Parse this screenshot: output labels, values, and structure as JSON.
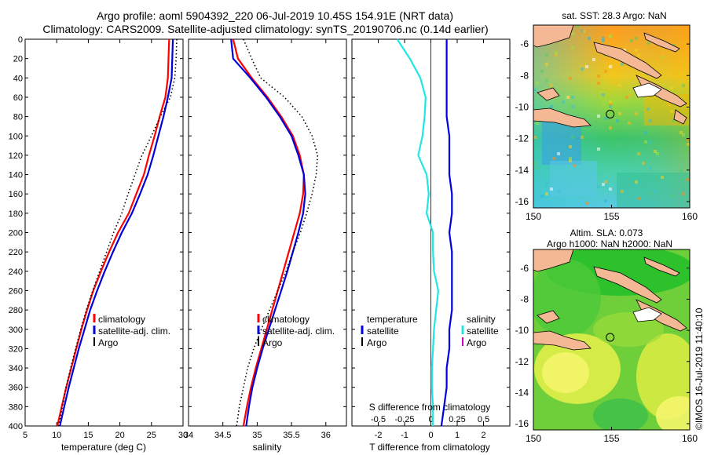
{
  "header": {
    "line1": "Argo profile: aoml 5904392_220 06-Jul-2019 10.45S 154.91E (NRT data)",
    "line2": "Climatology: CARS2009. Satellite-adjusted climatology: synTS_20190706.nc (0.14d earlier)"
  },
  "credit": "©IMOS 16-Jul-2019 11:40:10",
  "colors": {
    "climatology": "#ff0000",
    "satellite": "#0000dd",
    "argo": "#000000",
    "s_satellite": "#22e6e6",
    "s_argo": "#cc00cc",
    "land": "#f4b894"
  },
  "depth_ticks": [
    "0",
    "20",
    "40",
    "60",
    "80",
    "100",
    "120",
    "140",
    "160",
    "180",
    "200",
    "220",
    "240",
    "260",
    "280",
    "300",
    "320",
    "340",
    "360",
    "380",
    "400"
  ],
  "chart_data": [
    {
      "type": "line",
      "id": "temperature",
      "xlabel": "temperature (deg C)",
      "ylabel": "depth",
      "xlim": [
        5,
        30
      ],
      "ylim": [
        0,
        400
      ],
      "xticks": [
        "5",
        "10",
        "15",
        "20",
        "25",
        "30"
      ],
      "depth": [
        0,
        20,
        40,
        60,
        80,
        100,
        120,
        140,
        160,
        180,
        200,
        220,
        240,
        260,
        280,
        300,
        320,
        340,
        360,
        380,
        400
      ],
      "series": [
        {
          "name": "climatology",
          "color": "#ff0000",
          "style": "solid",
          "values": [
            27.8,
            27.7,
            27.6,
            27.2,
            26.3,
            25.5,
            24.6,
            23.8,
            22.6,
            21.4,
            19.7,
            18.3,
            17.0,
            15.8,
            14.8,
            13.9,
            13.1,
            12.3,
            11.5,
            10.8,
            10.1
          ]
        },
        {
          "name": "satellite-adj. clim.",
          "color": "#0000dd",
          "style": "solid",
          "values": [
            28.4,
            28.3,
            28.2,
            27.6,
            26.9,
            26.1,
            25.3,
            24.4,
            23.2,
            21.9,
            20.3,
            18.9,
            17.6,
            16.4,
            15.3,
            14.4,
            13.5,
            12.7,
            11.9,
            11.2,
            10.5
          ]
        },
        {
          "name": "Argo",
          "color": "#000000",
          "style": "dotted",
          "values": [
            29.0,
            28.9,
            28.7,
            28.0,
            26.4,
            25.0,
            23.5,
            22.4,
            21.3,
            20.3,
            19.0,
            17.9,
            16.8,
            15.7,
            14.7,
            13.8,
            13.0,
            12.2,
            11.5,
            10.9,
            10.3
          ]
        }
      ],
      "legend": [
        "climatology",
        "satellite-adj. clim.",
        "Argo"
      ]
    },
    {
      "type": "line",
      "id": "salinity",
      "xlabel": "salinity",
      "ylabel": "depth",
      "xlim": [
        34,
        36.3
      ],
      "ylim": [
        0,
        400
      ],
      "xticks": [
        "34",
        "34.5",
        "35",
        "35.5",
        "36"
      ],
      "depth": [
        0,
        20,
        40,
        60,
        80,
        100,
        120,
        140,
        160,
        180,
        200,
        220,
        240,
        260,
        280,
        300,
        320,
        340,
        360,
        380,
        400
      ],
      "series": [
        {
          "name": "climatology",
          "color": "#ff0000",
          "style": "solid",
          "values": [
            34.65,
            34.72,
            34.92,
            35.15,
            35.35,
            35.52,
            35.62,
            35.68,
            35.67,
            35.62,
            35.54,
            35.46,
            35.38,
            35.3,
            35.22,
            35.14,
            35.06,
            34.98,
            34.91,
            34.85,
            34.8
          ]
        },
        {
          "name": "satellite-adj. clim.",
          "color": "#0000dd",
          "style": "solid",
          "values": [
            34.62,
            34.65,
            34.9,
            35.13,
            35.33,
            35.5,
            35.6,
            35.68,
            35.7,
            35.67,
            35.6,
            35.52,
            35.44,
            35.35,
            35.26,
            35.17,
            35.08,
            35.0,
            34.93,
            34.88,
            34.84
          ]
        },
        {
          "name": "Argo",
          "color": "#000000",
          "style": "dotted",
          "values": [
            34.8,
            34.92,
            35.05,
            35.4,
            35.65,
            35.8,
            35.88,
            35.86,
            35.8,
            35.72,
            35.63,
            35.52,
            35.42,
            35.3,
            35.18,
            35.06,
            34.95,
            34.86,
            34.8,
            34.74,
            34.7
          ]
        }
      ],
      "legend": [
        "climatology",
        "satellite-adj. clim.",
        "Argo"
      ]
    },
    {
      "type": "line",
      "id": "difference",
      "xlabel": "T difference from climatology",
      "x2label": "S difference from climatology",
      "ylabel": "depth",
      "xlim": [
        -3,
        3
      ],
      "ylim": [
        0,
        400
      ],
      "xticks": [
        "-2",
        "-1",
        "0",
        "1",
        "2"
      ],
      "s_xticks": [
        "-0.5",
        "-0.25",
        "0",
        "0.25",
        "0.5"
      ],
      "depth": [
        0,
        20,
        40,
        60,
        80,
        100,
        120,
        140,
        160,
        180,
        200,
        220,
        240,
        260,
        280,
        300,
        320,
        340,
        360,
        380,
        400
      ],
      "series": [
        {
          "name": "temperature satellite",
          "color": "#0000dd",
          "style": "solid",
          "values": [
            0.6,
            0.6,
            0.6,
            0.6,
            0.6,
            0.7,
            0.7,
            0.7,
            0.8,
            0.8,
            0.7,
            0.8,
            0.8,
            0.8,
            0.8,
            0.7,
            0.7,
            0.6,
            0.6,
            0.5,
            0.4
          ]
        },
        {
          "name": "salinity satellite",
          "color": "#22e6e6",
          "style": "solid",
          "values": [
            -0.32,
            -0.2,
            -0.1,
            -0.05,
            -0.06,
            -0.08,
            -0.12,
            -0.04,
            -0.02,
            -0.04,
            0.02,
            0.02,
            0.03,
            0.07,
            0.05,
            0.03,
            0.02,
            0.01,
            0.01,
            0.02,
            0.02
          ]
        }
      ],
      "legend_t": {
        "title": "temperature",
        "items": [
          "satellite",
          "Argo"
        ]
      },
      "legend_s": {
        "title": "salinity",
        "items": [
          "satellite",
          "Argo"
        ]
      }
    },
    {
      "type": "heatmap",
      "id": "sst_map",
      "title": "sat. SST: 28.3 Argo: NaN",
      "xlim": [
        150,
        160
      ],
      "ylim": [
        -16.4,
        -4.8
      ],
      "xticks": [
        "150",
        "155",
        "160"
      ],
      "yticks": [
        "-6",
        "-8",
        "-10",
        "-12",
        "-14",
        "-16"
      ],
      "marker": {
        "lon": 154.91,
        "lat": -10.45
      }
    },
    {
      "type": "heatmap",
      "id": "sla_map",
      "title": "Altim. SLA: 0.073",
      "subtitle": "Argo h1000: NaN h2000: NaN",
      "xlim": [
        150,
        160
      ],
      "ylim": [
        -16.4,
        -4.8
      ],
      "xticks": [
        "150",
        "155",
        "160"
      ],
      "yticks": [
        "-6",
        "-8",
        "-10",
        "-12",
        "-14",
        "-16"
      ],
      "marker": {
        "lon": 154.91,
        "lat": -10.45
      }
    }
  ]
}
